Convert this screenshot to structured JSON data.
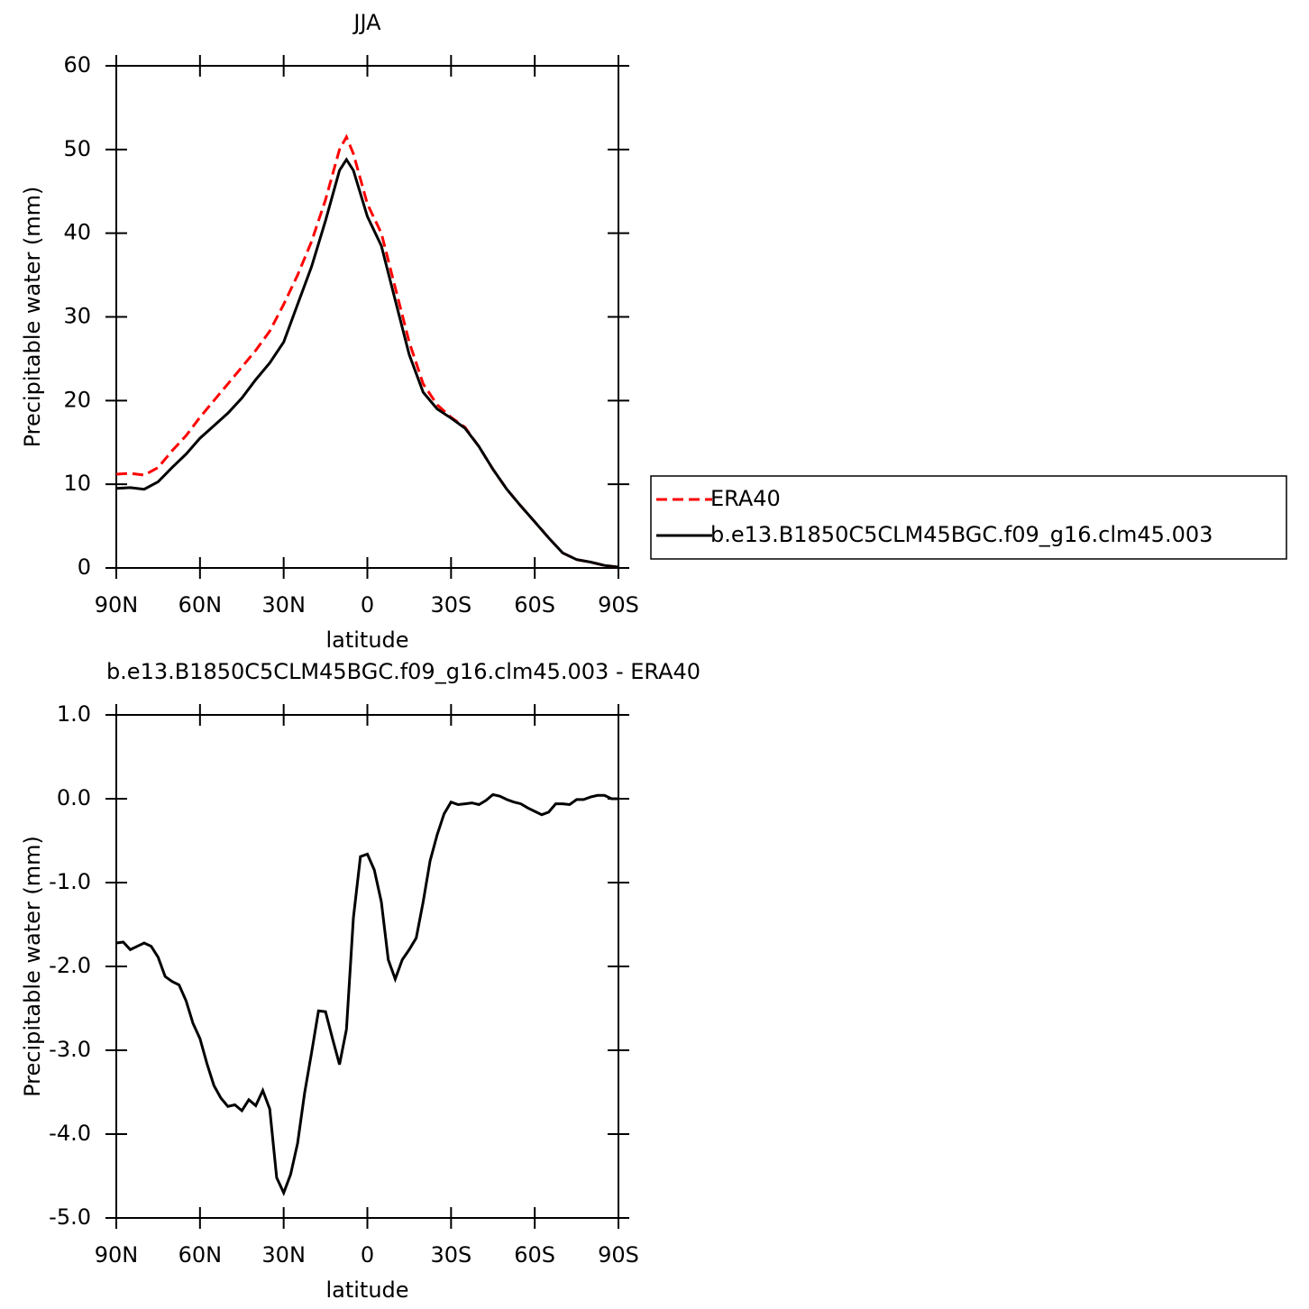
{
  "chart_data": [
    {
      "type": "line",
      "title": "JJA",
      "ylabel": "Precipitable water (mm)",
      "xlabel": "latitude",
      "x": [
        90,
        85,
        80,
        75,
        70,
        65,
        60,
        55,
        50,
        45,
        40,
        35,
        30,
        25,
        20,
        15,
        10,
        7.5,
        5,
        0,
        -5,
        -10,
        -15,
        -20,
        -25,
        -30,
        -35,
        -40,
        -45,
        -50,
        -55,
        -60,
        -65,
        -70,
        -75,
        -80,
        -85,
        -90
      ],
      "series": [
        {
          "name": "ERA40",
          "color": "#ff0000",
          "linestyle": "dashed",
          "values": [
            11.2,
            11.3,
            11.1,
            12.0,
            14.0,
            15.8,
            18.0,
            20.0,
            22.0,
            24.0,
            26.0,
            28.3,
            31.5,
            35.0,
            39.0,
            44.0,
            50.0,
            51.5,
            49.5,
            43.5,
            40.0,
            33.5,
            27.0,
            22.0,
            19.5,
            18.0,
            16.8,
            14.5,
            11.8,
            9.4,
            7.4,
            5.5,
            3.6,
            1.8,
            1.0,
            0.7,
            0.3,
            0.1
          ]
        },
        {
          "name": "b.e13.B1850C5CLM45BGC.f09_g16.clm45.003",
          "color": "#000000",
          "linestyle": "solid",
          "values": [
            9.5,
            9.6,
            9.4,
            10.3,
            12.0,
            13.6,
            15.5,
            17.0,
            18.5,
            20.3,
            22.5,
            24.5,
            27.0,
            31.5,
            36.0,
            41.5,
            47.5,
            48.8,
            47.5,
            42.0,
            38.5,
            32.0,
            25.5,
            21.0,
            19.0,
            17.9,
            16.7,
            14.5,
            11.8,
            9.4,
            7.4,
            5.5,
            3.6,
            1.8,
            1.0,
            0.7,
            0.3,
            0.1
          ]
        }
      ],
      "xlim": [
        90,
        -90
      ],
      "xticks": [
        {
          "value": 90,
          "label": "90N"
        },
        {
          "value": 60,
          "label": "60N"
        },
        {
          "value": 30,
          "label": "30N"
        },
        0,
        {
          "value": -30,
          "label": "30S"
        },
        {
          "value": -60,
          "label": "60S"
        },
        {
          "value": -90,
          "label": "90S"
        }
      ],
      "ylim": [
        0,
        60
      ],
      "yticks": [
        0,
        10,
        20,
        30,
        40,
        50,
        60
      ],
      "grid": false,
      "legend": "right"
    },
    {
      "type": "line",
      "title": "b.e13.B1850C5CLM45BGC.f09_g16.clm45.003 - ERA40",
      "ylabel": "Precipitable water (mm)",
      "xlabel": "latitude",
      "x": [
        90,
        87.5,
        85,
        82.5,
        80,
        77.5,
        75,
        72.5,
        70,
        67.5,
        65,
        62.5,
        60,
        57.5,
        55,
        52.5,
        50,
        47.5,
        45,
        42.5,
        40,
        37.5,
        35,
        32.5,
        30,
        27.5,
        25,
        22.5,
        20,
        17.5,
        15,
        12.5,
        10,
        7.5,
        5,
        2.5,
        0,
        -2.5,
        -5,
        -7.5,
        -10,
        -12.5,
        -15,
        -17.5,
        -20,
        -22.5,
        -25,
        -27.5,
        -30,
        -32.5,
        -35,
        -37.5,
        -40,
        -42.5,
        -45,
        -47.5,
        -50,
        -52.5,
        -55,
        -57.5,
        -60,
        -62.5,
        -65,
        -67.5,
        -70,
        -72.5,
        -75,
        -77.5,
        -80,
        -82.5,
        -85,
        -87.5,
        -90
      ],
      "series": [
        {
          "color": "#000000",
          "linestyle": "solid",
          "values": [
            -1.72,
            -1.71,
            -1.8,
            -1.76,
            -1.72,
            -1.76,
            -1.89,
            -2.12,
            -2.18,
            -2.22,
            -2.41,
            -2.68,
            -2.86,
            -3.16,
            -3.42,
            -3.57,
            -3.67,
            -3.65,
            -3.72,
            -3.59,
            -3.66,
            -3.48,
            -3.7,
            -4.52,
            -4.7,
            -4.48,
            -4.11,
            -3.51,
            -3.03,
            -2.53,
            -2.54,
            -2.86,
            -3.17,
            -2.75,
            -1.42,
            -0.69,
            -0.66,
            -0.85,
            -1.23,
            -1.92,
            -2.15,
            -1.92,
            -1.8,
            -1.66,
            -1.23,
            -0.74,
            -0.43,
            -0.18,
            -0.04,
            -0.07,
            -0.06,
            -0.05,
            -0.07,
            -0.02,
            0.05,
            0.03,
            -0.01,
            -0.04,
            -0.06,
            -0.11,
            -0.15,
            -0.19,
            -0.16,
            -0.06,
            -0.06,
            -0.07,
            -0.01,
            -0.01,
            0.02,
            0.04,
            0.04,
            0.0,
            0.0
          ]
        }
      ],
      "xlim": [
        90,
        -90
      ],
      "xticks": [
        {
          "value": 90,
          "label": "90N"
        },
        {
          "value": 60,
          "label": "60N"
        },
        {
          "value": 30,
          "label": "30N"
        },
        0,
        {
          "value": -30,
          "label": "30S"
        },
        {
          "value": -60,
          "label": "60S"
        },
        {
          "value": -90,
          "label": "90S"
        }
      ],
      "ylim": [
        -5,
        1
      ],
      "yticks": [
        {
          "value": -5,
          "label": "-5.0"
        },
        {
          "value": -4,
          "label": "-4.0"
        },
        {
          "value": -3,
          "label": "-3.0"
        },
        {
          "value": -2,
          "label": "-2.0"
        },
        {
          "value": -1,
          "label": "-1.0"
        },
        {
          "value": 0,
          "label": "0.0"
        },
        {
          "value": 1,
          "label": "1.0"
        }
      ],
      "grid": false
    }
  ]
}
